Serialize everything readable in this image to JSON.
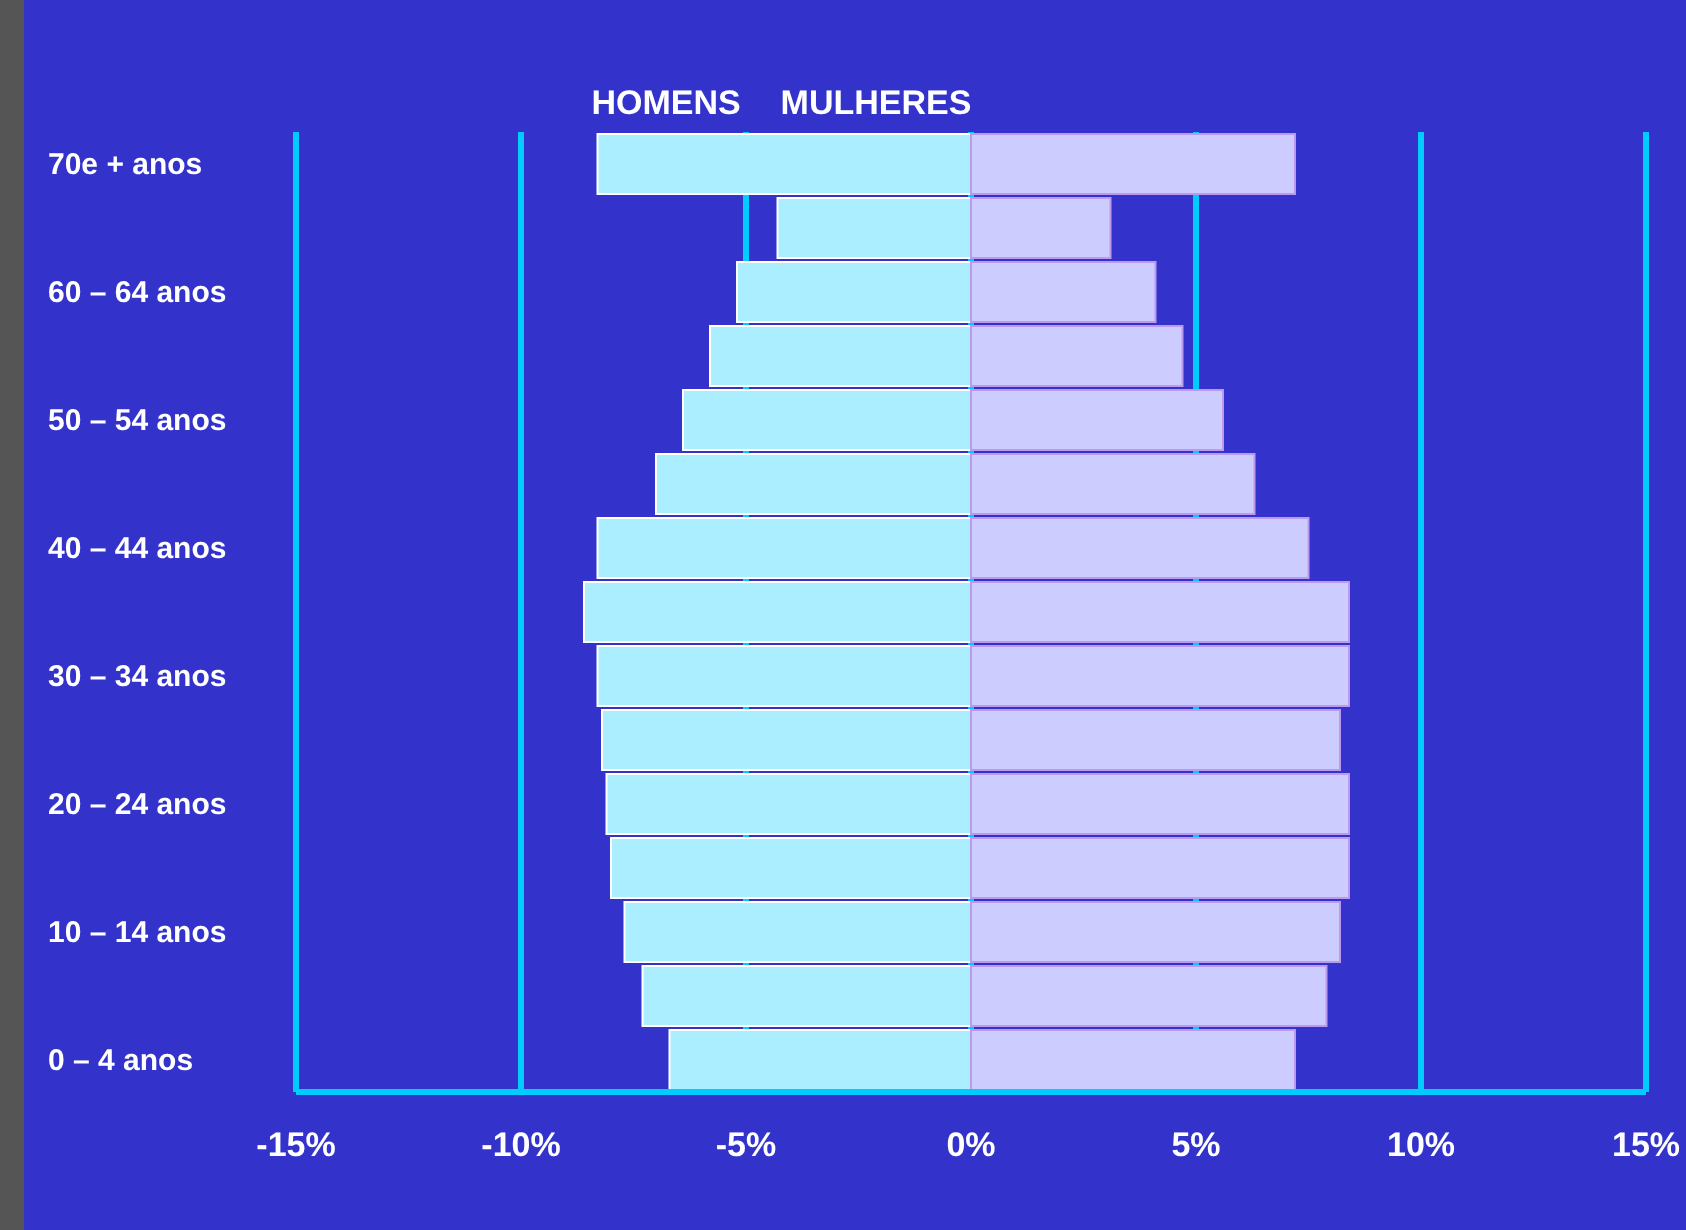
{
  "chart_data": {
    "type": "bar",
    "orientation": "horizontal",
    "stacked": true,
    "categories": [
      "70e + anos",
      null,
      "60 – 64 anos",
      null,
      "50 – 54 anos",
      null,
      "40 – 44 anos",
      null,
      "30 – 34 anos",
      null,
      "20 – 24 anos",
      null,
      "10 – 14 anos",
      null,
      "0 – 4 anos"
    ],
    "series": [
      {
        "name": "HOMENS",
        "color": "#aaeeff",
        "values": [
          -8.3,
          -4.3,
          -5.2,
          -5.8,
          -6.4,
          -7.0,
          -8.3,
          -8.6,
          -8.3,
          -8.2,
          -8.1,
          -8.0,
          -7.7,
          -7.3,
          -6.7
        ]
      },
      {
        "name": "MULHERES",
        "color": "#ccccff",
        "values": [
          7.2,
          3.1,
          4.1,
          4.7,
          5.6,
          6.3,
          7.5,
          8.4,
          8.4,
          8.2,
          8.4,
          8.4,
          8.2,
          7.9,
          7.2
        ]
      }
    ],
    "xlim": [
      -15,
      15
    ],
    "xticks": [
      {
        "value": -15,
        "label": "-15%"
      },
      {
        "value": -10,
        "label": "-10%"
      },
      {
        "value": -5,
        "label": "-5%"
      },
      {
        "value": 0,
        "label": "0%"
      },
      {
        "value": 5,
        "label": "5%"
      },
      {
        "value": 10,
        "label": "10%"
      },
      {
        "value": 15,
        "label": "15%"
      }
    ],
    "grid": "x",
    "legend": "top"
  }
}
